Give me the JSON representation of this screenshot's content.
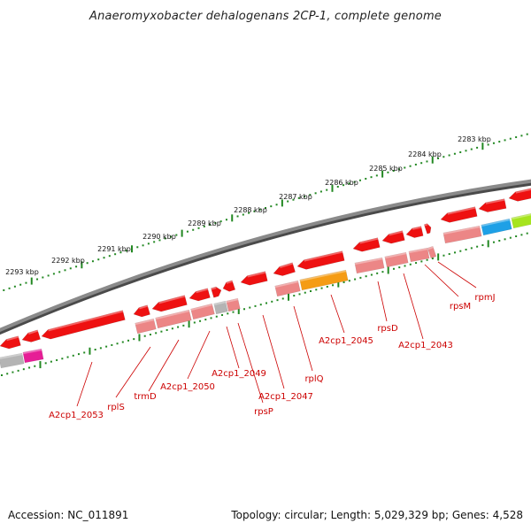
{
  "title": "Anaeromyxobacter dehalogenans 2CP-1, complete genome",
  "footer": {
    "accession": "Accession: NC_011891",
    "summary": "Topology: circular; Length: 5,029,329 bp; Genes: 4,528"
  },
  "colors": {
    "gene_red": "#ee1111",
    "rna_pink": "#ec8686",
    "feature_gray": "#b4b4b4",
    "feature_orange": "#f59c14",
    "feature_blue": "#1ea0e6",
    "feature_lime": "#a6e41e",
    "feature_magenta": "#e61e96",
    "backbone": "#8a8a8a",
    "scale_dots": "#228822",
    "label_red": "#cc0000"
  },
  "scale_labels": [
    "2283 kbp",
    "2284 kbp",
    "2285 kbp",
    "2286 kbp",
    "2287 kbp",
    "2288 kbp",
    "2289 kbp",
    "2290 kbp",
    "2291 kbp",
    "2292 kbp",
    "2293 kbp"
  ],
  "gene_labels": [
    "rpmJ",
    "rpsM",
    "A2cp1_2043",
    "rpsD",
    "A2cp1_2045",
    "rplQ",
    "A2cp1_2047",
    "rpsP",
    "A2cp1_2049",
    "A2cp1_2050",
    "trmD",
    "rplS",
    "A2cp1_2053"
  ]
}
